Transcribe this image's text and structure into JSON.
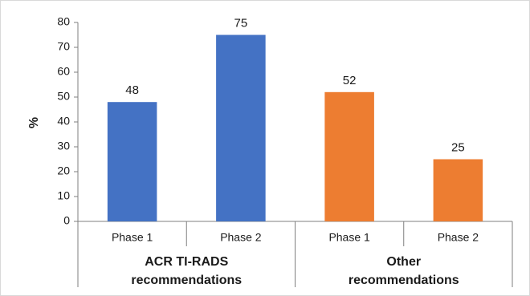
{
  "chart_data": {
    "type": "bar",
    "ylabel": "%",
    "ylim": [
      0,
      80
    ],
    "yticks": [
      0,
      10,
      20,
      30,
      40,
      50,
      60,
      70,
      80
    ],
    "grid": false,
    "legend": "none",
    "groups": [
      {
        "lines": [
          "ACR TI-RADS",
          "recommendations"
        ],
        "categories": [
          "Phase 1",
          "Phase 2"
        ]
      },
      {
        "lines": [
          "Other",
          "recommendations"
        ],
        "categories": [
          "Phase 1",
          "Phase 2"
        ]
      }
    ],
    "series": [
      {
        "values": [
          48,
          75,
          52,
          25
        ],
        "colors": [
          "#4472c4",
          "#4472c4",
          "#ed7d31",
          "#ed7d31"
        ]
      }
    ]
  }
}
